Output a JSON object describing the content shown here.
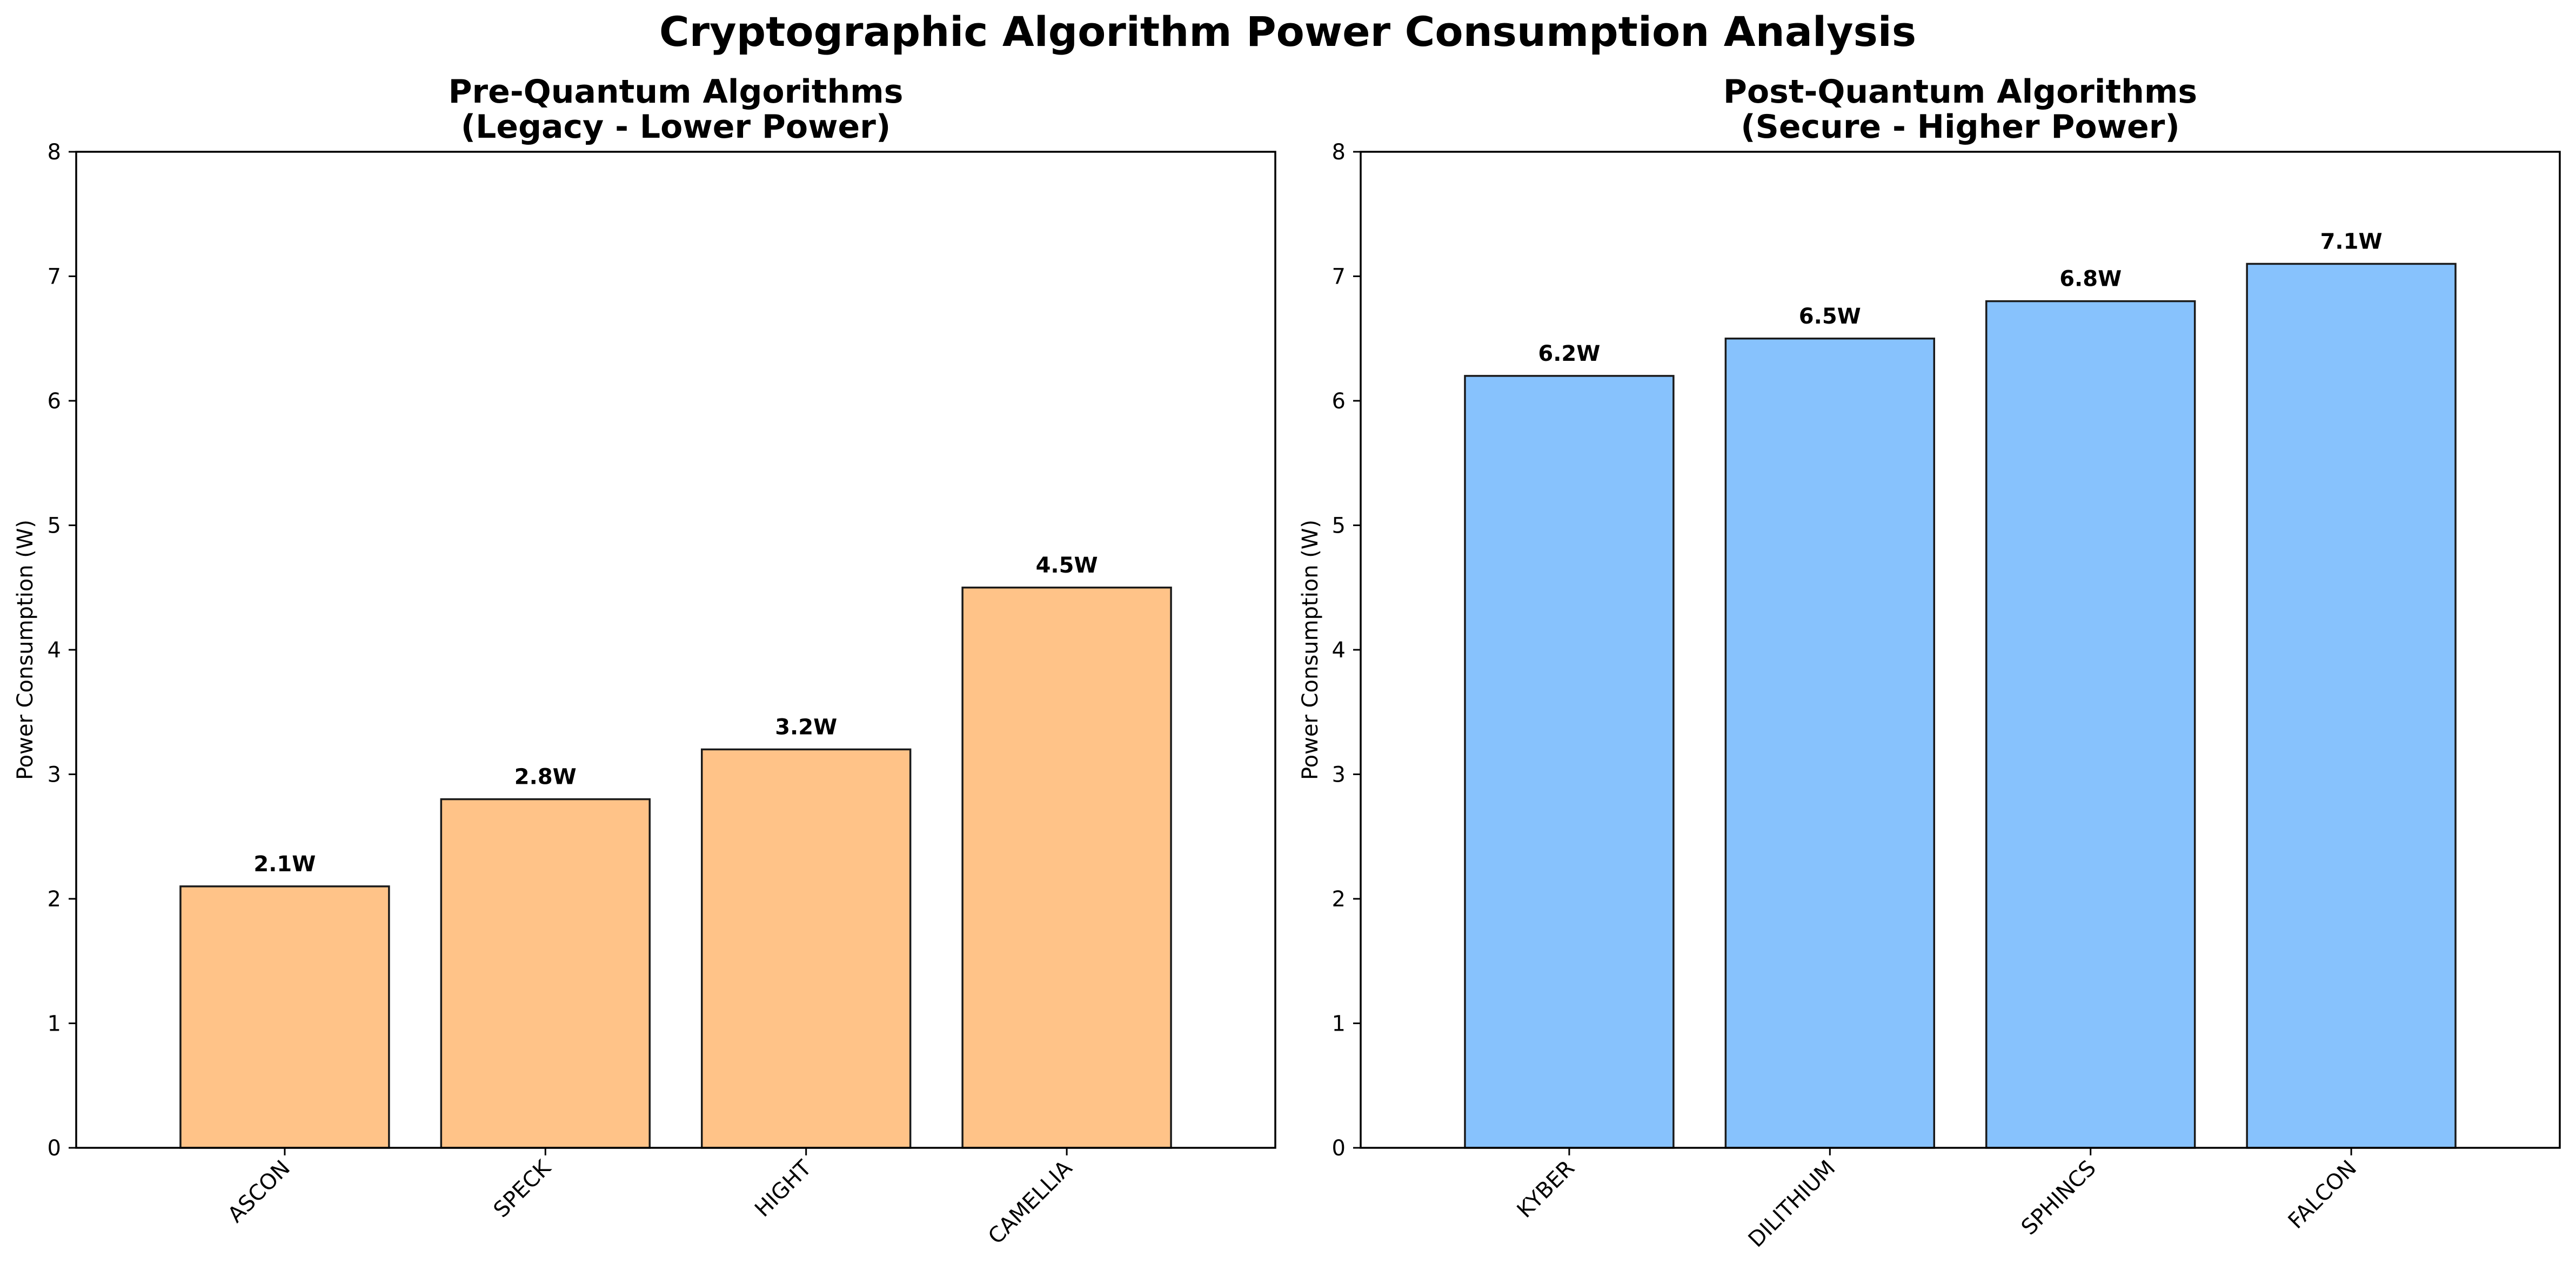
{
  "figure": {
    "title": "Cryptographic Algorithm Power Consumption Analysis",
    "label_suffix": "W"
  },
  "chart_data": [
    {
      "type": "bar",
      "title": "Pre-Quantum Algorithms",
      "subtitle": "(Legacy - Lower Power)",
      "xlabel": "",
      "ylabel": "Power Consumption (W)",
      "ylim": [
        0,
        8
      ],
      "yticks": [
        0,
        1,
        2,
        3,
        4,
        5,
        6,
        7,
        8
      ],
      "categories": [
        "ASCON",
        "SPECK",
        "HIGHT",
        "CAMELLIA"
      ],
      "values": [
        2.1,
        2.8,
        3.2,
        4.5
      ],
      "bar_color": "#ffc388",
      "edge_color": "#1a1a1a",
      "grid": false,
      "legend": "none"
    },
    {
      "type": "bar",
      "title": "Post-Quantum Algorithms",
      "subtitle": "(Secure - Higher Power)",
      "xlabel": "",
      "ylabel": "Power Consumption (W)",
      "ylim": [
        0,
        8
      ],
      "yticks": [
        0,
        1,
        2,
        3,
        4,
        5,
        6,
        7,
        8
      ],
      "categories": [
        "KYBER",
        "DILITHIUM",
        "SPHINCS",
        "FALCON"
      ],
      "values": [
        6.2,
        6.5,
        6.8,
        7.1
      ],
      "bar_color": "#87c2fd",
      "edge_color": "#1a1a1a",
      "grid": false,
      "legend": "none"
    }
  ]
}
